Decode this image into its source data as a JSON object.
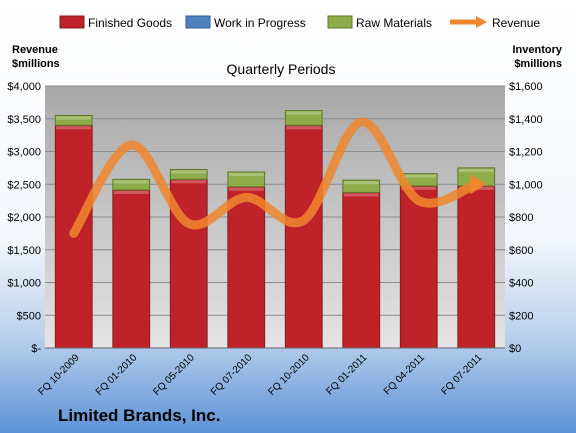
{
  "chart_data": {
    "type": "bar",
    "title": "Quarterly Periods",
    "brand": "Limited Brands, Inc.",
    "categories": [
      "FQ 10-2009",
      "FQ 01-2010",
      "FQ 05-2010",
      "FQ 07-2010",
      "FQ 10-2010",
      "FQ 01-2011",
      "FQ 04-2011",
      "FQ 07-2011"
    ],
    "stacked": true,
    "series": [
      {
        "name": "Finished Goods",
        "axis": "right",
        "color": "#c0222a",
        "values": [
          1360,
          965,
          1030,
          985,
          1360,
          950,
          990,
          990
        ]
      },
      {
        "name": "Work in Progress",
        "axis": "right",
        "color": "#4f81bd",
        "values": [
          0,
          0,
          0,
          0,
          0,
          0,
          0,
          0
        ]
      },
      {
        "name": "Raw Materials",
        "axis": "right",
        "color": "#8fac4a",
        "values": [
          60,
          65,
          60,
          90,
          90,
          75,
          75,
          110
        ]
      },
      {
        "name": "Revenue",
        "type": "line",
        "axis": "left",
        "color": "#f0862d",
        "values": [
          1750,
          3100,
          1900,
          2300,
          1950,
          3450,
          2250,
          2500
        ]
      }
    ],
    "ylabel_left": "Revenue\n$millions",
    "ylabel_right": "Inventory\n$millions",
    "ylim_left": [
      0,
      4000
    ],
    "ylim_right": [
      0,
      1600
    ],
    "yticks_left": [
      "$-",
      "$500",
      "$1,000",
      "$1,500",
      "$2,000",
      "$2,500",
      "$3,000",
      "$3,500",
      "$4,000"
    ],
    "yticks_right": [
      "$0",
      "$200",
      "$400",
      "$600",
      "$800",
      "$1,000",
      "$1,200",
      "$1,400",
      "$1,600"
    ],
    "grid": true,
    "legend_position": "top"
  }
}
